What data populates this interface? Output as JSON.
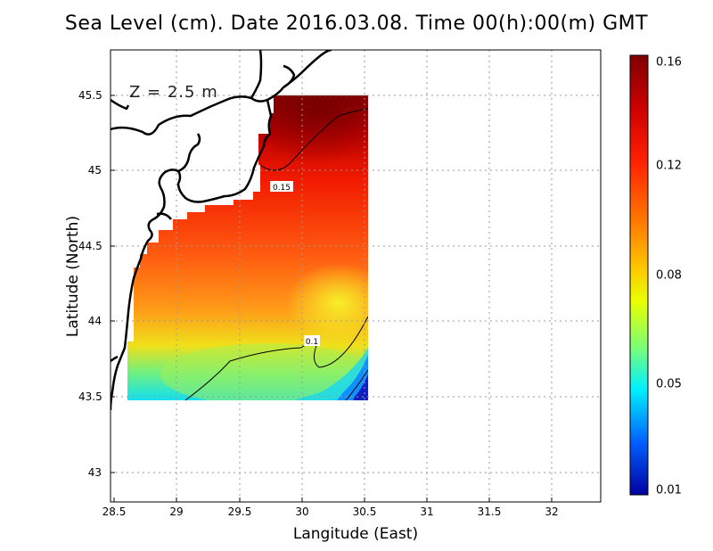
{
  "title": "Sea Level (cm). Date 2016.03.08. Time 00(h):00(m) GMT",
  "depth_label": "Z = 2.5 m",
  "xlabel": "Langitude (East)",
  "ylabel": "Latitude (North)",
  "x_ticks": [
    "28.5",
    "29",
    "29.5",
    "30",
    "30.5",
    "31",
    "31.5",
    "32"
  ],
  "y_ticks": [
    "43",
    "43.5",
    "44",
    "44.5",
    "45",
    "45.5"
  ],
  "x_range": [
    28.5,
    32.4
  ],
  "y_range": [
    42.8,
    45.8
  ],
  "colorbar": {
    "ticks": [
      "0.16",
      "0.12",
      "0.08",
      "0.05",
      "0.01"
    ],
    "colors": [
      "#7f0000",
      "#cc0000",
      "#ff2200",
      "#ff7a00",
      "#ffc400",
      "#eaff00",
      "#80ff70",
      "#00f0ff",
      "#0060ff",
      "#0000a0"
    ]
  },
  "contour_labels": [
    "0.15",
    "0.1"
  ],
  "colors": {
    "frame": "#000000",
    "grid": "#9a9a9a",
    "coast": "#000000"
  }
}
